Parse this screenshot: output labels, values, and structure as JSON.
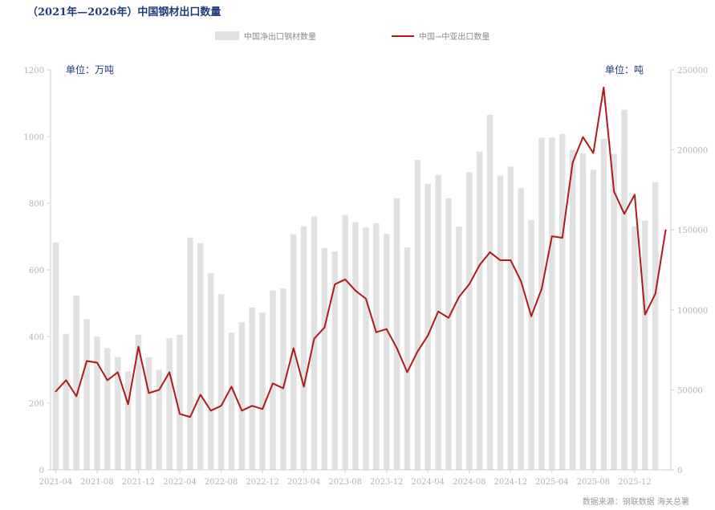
{
  "title": "（2021年—2026年）中国钢材出口数量",
  "unit_left": "单位：万吨",
  "unit_right": "单位：吨",
  "source": "数据来源：钢联数据 海关总署",
  "colors": {
    "bar": "#e1e1e1",
    "line": "#b01a1a",
    "tick": "#b3b3b3",
    "title": "#1f3d7a"
  },
  "chart_data": {
    "type": "bar",
    "title": "（2021年—2026年）中国钢材出口数量",
    "legend_placement": "top",
    "grid": false,
    "x_ticks": [
      "2021-04",
      "2021-08",
      "2021-12",
      "2022-04",
      "2022-08",
      "2022-12",
      "2023-04",
      "2023-08",
      "2023-12",
      "2024-04",
      "2024-08",
      "2024-12",
      "2025-04",
      "2025-08",
      "2025-12"
    ],
    "categories": [
      "2021-04",
      "2021-05",
      "2021-06",
      "2021-07",
      "2021-08",
      "2021-09",
      "2021-10",
      "2021-11",
      "2021-12",
      "2022-01",
      "2022-02",
      "2022-03",
      "2022-04",
      "2022-05",
      "2022-06",
      "2022-07",
      "2022-08",
      "2022-09",
      "2022-10",
      "2022-11",
      "2022-12",
      "2023-01",
      "2023-02",
      "2023-03",
      "2023-04",
      "2023-05",
      "2023-06",
      "2023-07",
      "2023-08",
      "2023-09",
      "2023-10",
      "2023-11",
      "2023-12",
      "2024-01",
      "2024-02",
      "2024-03",
      "2024-04",
      "2024-05",
      "2024-06",
      "2024-07",
      "2024-08",
      "2024-09",
      "2024-10",
      "2024-11",
      "2024-12",
      "2025-01",
      "2025-02",
      "2025-03",
      "2025-04",
      "2025-05",
      "2025-06",
      "2025-07",
      "2025-08",
      "2025-09",
      "2025-10",
      "2025-11",
      "2025-12",
      "2026-01",
      "2026-02",
      "2026-03"
    ],
    "y_left_lim": [
      0,
      1200
    ],
    "y_left_ticks": [
      0,
      200,
      400,
      600,
      800,
      1000,
      1200
    ],
    "y_right_lim": [
      0,
      250000
    ],
    "y_right_ticks": [
      0,
      50000,
      100000,
      150000,
      200000,
      250000
    ],
    "series": [
      {
        "name": "中国净出口钢材数量",
        "type": "bar",
        "axis": "left",
        "values": [
          682,
          408,
          523,
          452,
          400,
          365,
          338,
          295,
          405,
          338,
          300,
          395,
          405,
          697,
          680,
          590,
          527,
          412,
          443,
          487,
          472,
          538,
          544,
          707,
          730,
          760,
          665,
          655,
          765,
          743,
          727,
          740,
          708,
          815,
          667,
          930,
          858,
          885,
          815,
          730,
          893,
          955,
          1065,
          883,
          910,
          845,
          750,
          997,
          997,
          1008,
          960,
          950,
          900,
          993,
          948,
          1080,
          730,
          748,
          863,
          0
        ]
      },
      {
        "name": "中国→中亚出口数量",
        "type": "line",
        "axis": "right",
        "values": [
          49000,
          56000,
          46000,
          68000,
          67000,
          56000,
          61000,
          41000,
          77000,
          48000,
          50000,
          61000,
          35000,
          33000,
          47000,
          37000,
          40000,
          52000,
          37000,
          40000,
          38000,
          54000,
          51000,
          76000,
          52000,
          82000,
          89000,
          116000,
          119000,
          112000,
          107000,
          86000,
          88000,
          76000,
          61000,
          74000,
          84000,
          99000,
          95000,
          108000,
          116000,
          128000,
          136000,
          131000,
          131000,
          118000,
          96000,
          113000,
          146000,
          145000,
          192000,
          208000,
          198000,
          239000,
          174000,
          160000,
          172000,
          97000,
          110000,
          150000
        ]
      }
    ]
  }
}
